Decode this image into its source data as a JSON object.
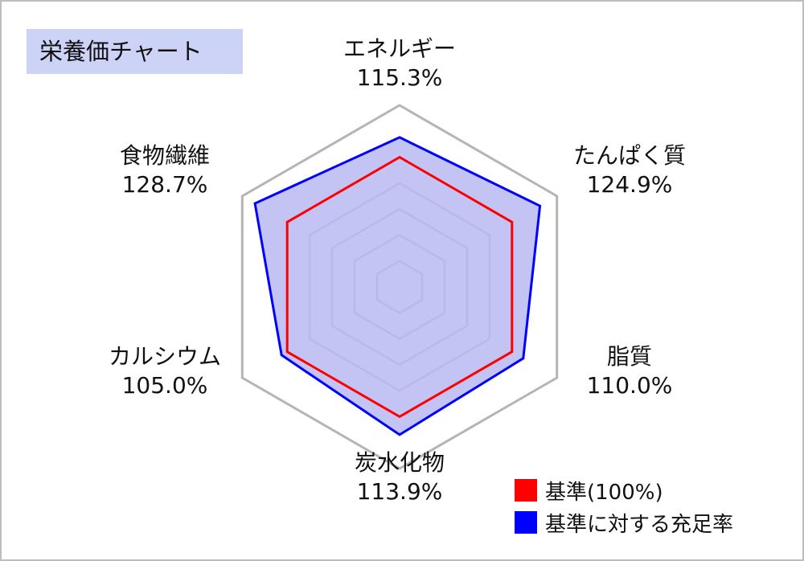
{
  "title": "栄養価チャート",
  "chart_data": {
    "type": "radar",
    "axes": [
      {
        "name": "エネルギー",
        "value": 115.3,
        "label": "115.3%"
      },
      {
        "name": "たんぱく質",
        "value": 124.9,
        "label": "124.9%"
      },
      {
        "name": "脂質",
        "value": 110.0,
        "label": "110.0%"
      },
      {
        "name": "炭水化物",
        "value": 113.9,
        "label": "113.9%"
      },
      {
        "name": "カルシウム",
        "value": 105.0,
        "label": "105.0%"
      },
      {
        "name": "食物繊維",
        "value": 128.7,
        "label": "128.7%"
      }
    ],
    "series": [
      {
        "name": "基準(100%)",
        "values": [
          100,
          100,
          100,
          100,
          100,
          100
        ],
        "color": "#ff0000"
      },
      {
        "name": "基準に対する充足率",
        "values": [
          115.3,
          124.9,
          110.0,
          113.9,
          105.0,
          128.7
        ],
        "color": "#0000ff",
        "fill": "#b9b9f2"
      }
    ],
    "grid_levels": [
      20,
      40,
      60,
      80,
      100,
      140
    ],
    "max": 140,
    "legend_position": "bottom-right"
  },
  "colors": {
    "title_bg": "#cdd2f7",
    "reference": "#ff0000",
    "ratio": "#0000ff",
    "grid": "#b5b5b5"
  }
}
